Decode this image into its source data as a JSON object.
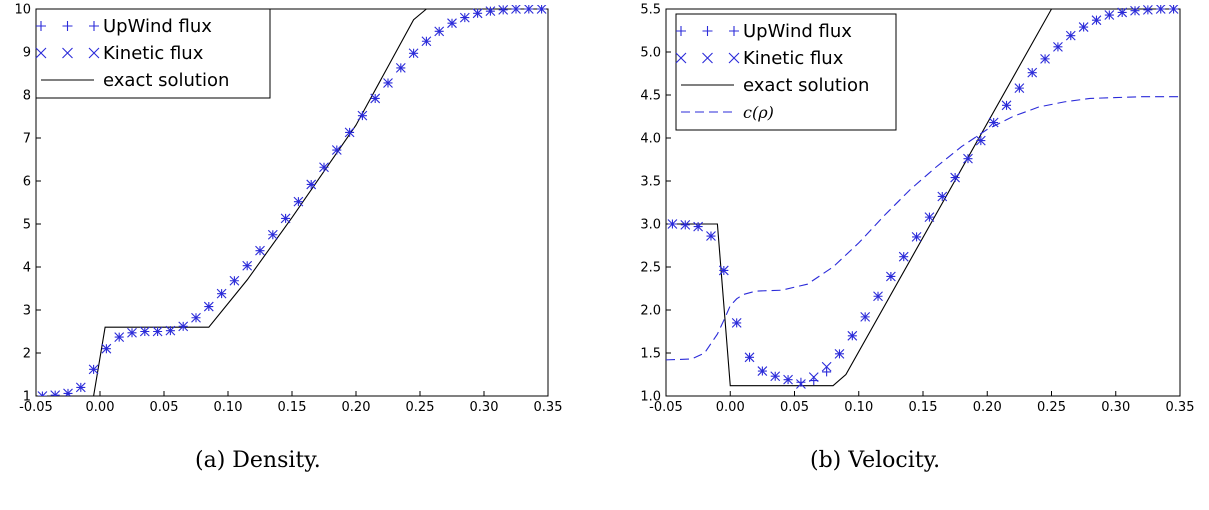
{
  "chart_data": [
    {
      "type": "line",
      "caption": "(a) Density.",
      "xlim": [
        -0.05,
        0.35
      ],
      "ylim": [
        1,
        10
      ],
      "x_ticks": [
        -0.05,
        0.0,
        0.05,
        0.1,
        0.15,
        0.2,
        0.25,
        0.3,
        0.35
      ],
      "x_tick_labels": [
        "-0.05",
        "0.00",
        "0.05",
        "0.10",
        "0.15",
        "0.20",
        "0.25",
        "0.30",
        "0.35"
      ],
      "y_ticks": [
        1,
        2,
        3,
        4,
        5,
        6,
        7,
        8,
        9,
        10
      ],
      "y_tick_labels": [
        "1",
        "2",
        "3",
        "4",
        "5",
        "6",
        "7",
        "8",
        "9",
        "10"
      ],
      "legend_position": "top-left",
      "series": [
        {
          "name": "UpWind flux",
          "style": "markers",
          "marker": "plus",
          "color": "#2b2bd9",
          "x": [
            -0.045,
            -0.035,
            -0.025,
            -0.015,
            -0.005,
            0.005,
            0.015,
            0.025,
            0.035,
            0.045,
            0.055,
            0.065,
            0.075,
            0.085,
            0.095,
            0.105,
            0.115,
            0.125,
            0.135,
            0.145,
            0.155,
            0.165,
            0.175,
            0.185,
            0.195,
            0.205,
            0.215,
            0.225,
            0.235,
            0.245,
            0.255,
            0.265,
            0.275,
            0.285,
            0.295,
            0.305,
            0.315,
            0.325,
            0.335,
            0.345
          ],
          "y": [
            1.0,
            1.02,
            1.06,
            1.2,
            1.62,
            2.1,
            2.37,
            2.47,
            2.5,
            2.5,
            2.52,
            2.62,
            2.82,
            3.08,
            3.38,
            3.68,
            4.03,
            4.38,
            4.75,
            5.13,
            5.52,
            5.92,
            6.32,
            6.72,
            7.13,
            7.52,
            7.92,
            8.28,
            8.63,
            8.97,
            9.25,
            9.48,
            9.67,
            9.8,
            9.9,
            9.95,
            9.98,
            10.0,
            10.0,
            10.0
          ]
        },
        {
          "name": "Kinetic flux",
          "style": "markers",
          "marker": "cross",
          "color": "#2b2bd9",
          "x": [
            -0.045,
            -0.035,
            -0.025,
            -0.015,
            -0.005,
            0.005,
            0.015,
            0.025,
            0.035,
            0.045,
            0.055,
            0.065,
            0.075,
            0.085,
            0.095,
            0.105,
            0.115,
            0.125,
            0.135,
            0.145,
            0.155,
            0.165,
            0.175,
            0.185,
            0.195,
            0.205,
            0.215,
            0.225,
            0.235,
            0.245,
            0.255,
            0.265,
            0.275,
            0.285,
            0.295,
            0.305,
            0.315,
            0.325,
            0.335,
            0.345
          ],
          "y": [
            1.0,
            1.02,
            1.06,
            1.2,
            1.62,
            2.1,
            2.37,
            2.47,
            2.5,
            2.5,
            2.52,
            2.62,
            2.82,
            3.08,
            3.38,
            3.68,
            4.03,
            4.38,
            4.75,
            5.13,
            5.52,
            5.92,
            6.32,
            6.72,
            7.13,
            7.52,
            7.92,
            8.28,
            8.63,
            8.97,
            9.25,
            9.48,
            9.67,
            9.8,
            9.9,
            9.95,
            9.98,
            10.0,
            10.0,
            10.0
          ]
        },
        {
          "name": "exact solution",
          "style": "solid",
          "color": "#000000",
          "x": [
            -0.05,
            -0.005,
            0.004,
            0.085,
            0.115,
            0.15,
            0.2,
            0.245,
            0.255,
            0.35
          ],
          "y": [
            1.0,
            1.0,
            2.6,
            2.6,
            3.7,
            5.15,
            7.3,
            9.75,
            10.0,
            10.0
          ]
        }
      ]
    },
    {
      "type": "line",
      "caption": "(b) Velocity.",
      "xlim": [
        -0.05,
        0.35
      ],
      "ylim": [
        1.0,
        5.5
      ],
      "x_ticks": [
        -0.05,
        0.0,
        0.05,
        0.1,
        0.15,
        0.2,
        0.25,
        0.3,
        0.35
      ],
      "x_tick_labels": [
        "-0.05",
        "0.00",
        "0.05",
        "0.10",
        "0.15",
        "0.20",
        "0.25",
        "0.30",
        "0.35"
      ],
      "y_ticks": [
        1.0,
        1.5,
        2.0,
        2.5,
        3.0,
        3.5,
        4.0,
        4.5,
        5.0,
        5.5
      ],
      "y_tick_labels": [
        "1.0",
        "1.5",
        "2.0",
        "2.5",
        "3.0",
        "3.5",
        "4.0",
        "4.5",
        "5.0",
        "5.5"
      ],
      "legend_position": "top-left",
      "series": [
        {
          "name": "UpWind flux",
          "style": "markers",
          "marker": "plus",
          "color": "#2b2bd9",
          "x": [
            -0.045,
            -0.035,
            -0.025,
            -0.015,
            -0.005,
            0.005,
            0.015,
            0.025,
            0.035,
            0.045,
            0.055,
            0.065,
            0.075,
            0.085,
            0.095,
            0.105,
            0.115,
            0.125,
            0.135,
            0.145,
            0.155,
            0.165,
            0.175,
            0.185,
            0.195,
            0.205,
            0.215,
            0.225,
            0.235,
            0.245,
            0.255,
            0.265,
            0.275,
            0.285,
            0.295,
            0.305,
            0.315,
            0.325,
            0.335,
            0.345
          ],
          "y": [
            3.0,
            2.99,
            2.97,
            2.86,
            2.46,
            1.85,
            1.45,
            1.29,
            1.23,
            1.19,
            1.16,
            1.18,
            1.28,
            1.49,
            1.7,
            1.92,
            2.16,
            2.39,
            2.62,
            2.85,
            3.08,
            3.32,
            3.54,
            3.76,
            3.97,
            4.18,
            4.38,
            4.58,
            4.76,
            4.92,
            5.06,
            5.19,
            5.29,
            5.37,
            5.43,
            5.46,
            5.48,
            5.49,
            5.5,
            5.5
          ]
        },
        {
          "name": "Kinetic flux",
          "style": "markers",
          "marker": "cross",
          "color": "#2b2bd9",
          "x": [
            -0.045,
            -0.035,
            -0.025,
            -0.015,
            -0.005,
            0.005,
            0.015,
            0.025,
            0.035,
            0.045,
            0.055,
            0.065,
            0.075,
            0.085,
            0.095,
            0.105,
            0.115,
            0.125,
            0.135,
            0.145,
            0.155,
            0.165,
            0.175,
            0.185,
            0.195,
            0.205,
            0.215,
            0.225,
            0.235,
            0.245,
            0.255,
            0.265,
            0.275,
            0.285,
            0.295,
            0.305,
            0.315,
            0.325,
            0.335,
            0.345
          ],
          "y": [
            3.0,
            2.99,
            2.97,
            2.86,
            2.46,
            1.85,
            1.45,
            1.29,
            1.23,
            1.19,
            1.14,
            1.22,
            1.34,
            1.49,
            1.7,
            1.92,
            2.16,
            2.39,
            2.62,
            2.85,
            3.08,
            3.32,
            3.54,
            3.76,
            3.97,
            4.18,
            4.38,
            4.58,
            4.76,
            4.92,
            5.06,
            5.19,
            5.29,
            5.37,
            5.43,
            5.46,
            5.48,
            5.49,
            5.5,
            5.5
          ]
        },
        {
          "name": "exact solution",
          "style": "solid",
          "color": "#000000",
          "x": [
            -0.05,
            -0.01,
            0.0,
            0.08,
            0.09,
            0.25,
            0.35
          ],
          "y": [
            3.0,
            3.0,
            1.12,
            1.12,
            1.25,
            5.5,
            5.5
          ]
        },
        {
          "name": "c(ρ)",
          "style": "dashed",
          "color": "#2b2bd9",
          "x": [
            -0.05,
            -0.03,
            -0.02,
            -0.01,
            -0.005,
            0.0,
            0.005,
            0.01,
            0.02,
            0.04,
            0.06,
            0.08,
            0.1,
            0.12,
            0.14,
            0.16,
            0.18,
            0.2,
            0.22,
            0.24,
            0.26,
            0.28,
            0.3,
            0.32,
            0.35
          ],
          "y": [
            1.42,
            1.43,
            1.5,
            1.72,
            1.88,
            2.05,
            2.13,
            2.18,
            2.22,
            2.23,
            2.3,
            2.5,
            2.78,
            3.1,
            3.4,
            3.66,
            3.9,
            4.1,
            4.25,
            4.36,
            4.42,
            4.46,
            4.47,
            4.48,
            4.48
          ]
        }
      ]
    }
  ]
}
